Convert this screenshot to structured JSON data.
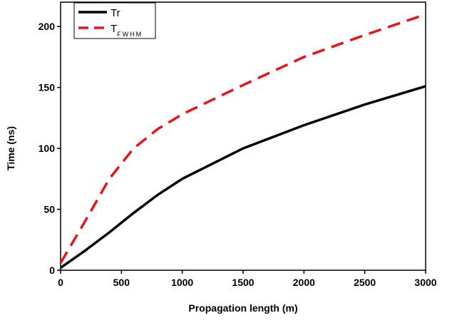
{
  "chart_data": {
    "type": "line",
    "x_label": "Propagation length (m)",
    "y_label": "Time (ns)",
    "x": [
      0,
      200,
      400,
      600,
      800,
      1000,
      1500,
      2000,
      2500,
      3000
    ],
    "series": [
      {
        "name": "Tr",
        "color": "#000000",
        "dash": false,
        "values": [
          2,
          16,
          31,
          47,
          62,
          75,
          100,
          119,
          136,
          151
        ]
      },
      {
        "name": "T",
        "subscript": "FWHM",
        "color": "#e8141b",
        "dash": true,
        "values": [
          6,
          40,
          75,
          100,
          116,
          128,
          152,
          175,
          193,
          210
        ]
      }
    ],
    "xlim": [
      0,
      3000
    ],
    "xticks": [
      0,
      500,
      1000,
      1500,
      2000,
      2500,
      3000
    ],
    "ylim": [
      0,
      220
    ],
    "yticks": [
      0,
      50,
      100,
      150,
      200
    ],
    "grid": false,
    "legend": "upper left"
  }
}
